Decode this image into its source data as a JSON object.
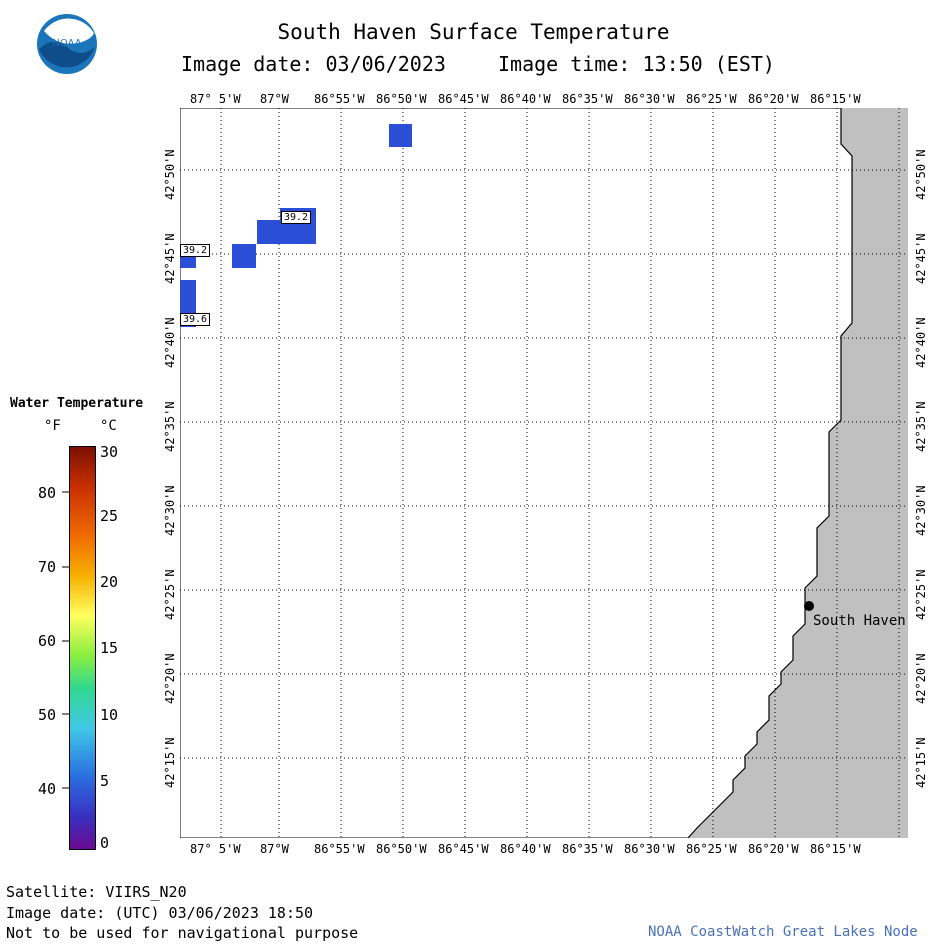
{
  "header": {
    "title": "South Haven Surface Temperature",
    "image_date": "Image date: 03/06/2023",
    "image_time": "Image time: 13:50 (EST)"
  },
  "logo": {
    "text": "NOAA"
  },
  "map": {
    "lon_labels": [
      "87° 5'W",
      "87°W",
      "86°55'W",
      "86°50'W",
      "86°45'W",
      "86°40'W",
      "86°35'W",
      "86°30'W",
      "86°25'W",
      "86°20'W",
      "86°15'W"
    ],
    "lat_labels": [
      "42°50'N",
      "42°45'N",
      "42°40'N",
      "42°35'N",
      "42°30'N",
      "42°25'N",
      "42°20'N",
      "42°15'N"
    ],
    "land_color": "#c0c0c0",
    "water_color": "#ffffff",
    "pixel_color": "#2a4fd6",
    "city": {
      "name": "South Haven"
    },
    "temp_labels": [
      "39.2",
      "39.2",
      "39.6"
    ]
  },
  "legend": {
    "title": "Water Temperature",
    "unit_f": "°F",
    "unit_c": "°C",
    "f_ticks": [
      "80",
      "70",
      "60",
      "50",
      "40"
    ],
    "c_ticks": [
      "30",
      "25",
      "20",
      "15",
      "10",
      "5",
      "0"
    ]
  },
  "footer": {
    "satellite": "Satellite: VIIRS_N20",
    "utc_date": "Image date: (UTC) 03/06/2023  18:50",
    "disclaimer": "Not to be used for navigational purpose",
    "credit": "NOAA CoastWatch Great Lakes Node"
  }
}
